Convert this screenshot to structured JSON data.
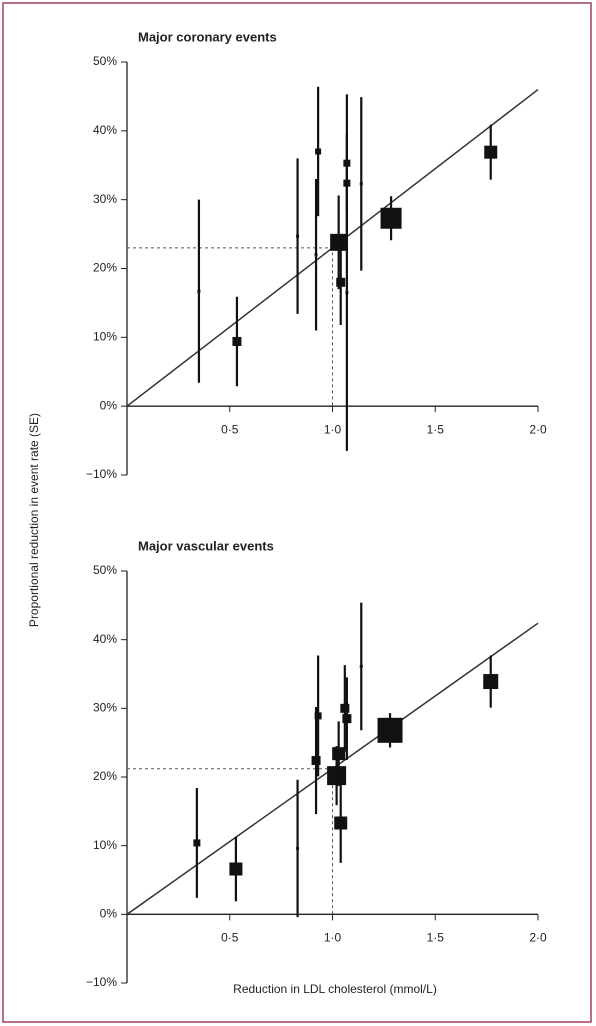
{
  "chart_data": [
    {
      "type": "scatter",
      "title": "Major coronary events",
      "ylabel": "Proportional reduction in event rate (SE)",
      "xlim": [
        0,
        2
      ],
      "ylim": [
        -10,
        50
      ],
      "xticks": [
        {
          "value": 0.5,
          "label": "0·5"
        },
        {
          "value": 1,
          "label": "1·0"
        },
        {
          "value": 1.5,
          "label": "1·5"
        },
        {
          "value": 2,
          "label": "2·0"
        }
      ],
      "yticks": [
        {
          "value": -10,
          "label": "−10%"
        },
        {
          "value": 0,
          "label": "0%"
        },
        {
          "value": 10,
          "label": "10%"
        },
        {
          "value": 20,
          "label": "20%"
        },
        {
          "value": 30,
          "label": "30%"
        },
        {
          "value": 40,
          "label": "40%"
        },
        {
          "value": 50,
          "label": "50%"
        }
      ],
      "color": "#111111",
      "x": [
        0.35,
        0.535,
        0.83,
        0.92,
        0.93,
        1.03,
        1.04,
        1.07,
        1.07,
        1.07,
        1.14,
        1.285,
        1.77
      ],
      "values": [
        16.7,
        9.4,
        24.7,
        22,
        37,
        23.8,
        18,
        16.5,
        32.4,
        35.3,
        32.3,
        27.3,
        36.9
      ],
      "errors": [
        13.3,
        6.5,
        11.3,
        11,
        9.4,
        6.8,
        6.2,
        23,
        4,
        10,
        12.6,
        3.2,
        4
      ],
      "sizes": [
        1,
        4,
        1,
        1,
        2.5,
        8,
        4,
        1,
        3,
        3,
        1,
        10,
        6
      ],
      "fit": {
        "x": [
          0,
          2
        ],
        "y": [
          0,
          46
        ]
      },
      "reference": {
        "x": 1,
        "y": 23
      }
    },
    {
      "type": "scatter",
      "title": "Major vascular events",
      "xlabel": "Reduction in LDL cholesterol (mmol/L)",
      "xlim": [
        0,
        2
      ],
      "ylim": [
        -10,
        50
      ],
      "xticks": [
        {
          "value": 0.5,
          "label": "0·5"
        },
        {
          "value": 1,
          "label": "1·0"
        },
        {
          "value": 1.5,
          "label": "1·5"
        },
        {
          "value": 2,
          "label": "2·0"
        }
      ],
      "yticks": [
        {
          "value": -10,
          "label": "−10%"
        },
        {
          "value": 0,
          "label": "0%"
        },
        {
          "value": 10,
          "label": "10%"
        },
        {
          "value": 20,
          "label": "20%"
        },
        {
          "value": 30,
          "label": "30%"
        },
        {
          "value": 40,
          "label": "40%"
        },
        {
          "value": 50,
          "label": "50%"
        }
      ],
      "color": "#111111",
      "x": [
        0.34,
        0.53,
        0.83,
        0.92,
        0.93,
        1.02,
        1.03,
        1.04,
        1.06,
        1.07,
        1.14,
        1.28,
        1.77
      ],
      "values": [
        10.4,
        6.6,
        9.6,
        22.4,
        28.9,
        20.2,
        23.4,
        13.3,
        30,
        28.5,
        36.1,
        26.8,
        33.9
      ],
      "errors": [
        8,
        4.7,
        10,
        7.8,
        8.8,
        4.3,
        4.7,
        5.8,
        6.3,
        6,
        9.3,
        2.5,
        3.8
      ],
      "sizes": [
        3,
        6,
        1,
        4,
        3,
        9,
        6,
        6,
        4,
        4,
        1,
        12,
        7
      ],
      "fit": {
        "x": [
          0,
          2
        ],
        "y": [
          0,
          42.4
        ]
      },
      "reference": {
        "x": 1,
        "y": 21.2
      }
    }
  ]
}
